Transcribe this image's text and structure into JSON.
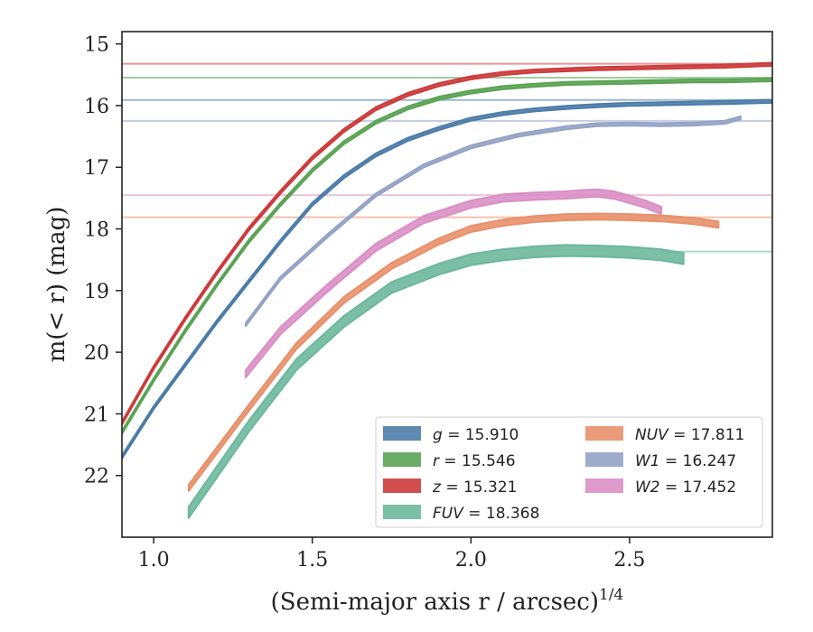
{
  "chart_data": {
    "type": "line",
    "xlabel": "(Semi-major axis r / arcsec)",
    "xlabel_sup": "1/4",
    "ylabel": "m(< r) (mag)",
    "xlim": [
      0.9,
      2.95
    ],
    "ylim": [
      23.0,
      14.8
    ],
    "y_inverted": true,
    "xticks": [
      1.0,
      1.5,
      2.0,
      2.5
    ],
    "xtick_labels": [
      "1.0",
      "1.5",
      "2.0",
      "2.5"
    ],
    "yticks": [
      15,
      16,
      17,
      18,
      19,
      20,
      21,
      22
    ],
    "ytick_labels": [
      "15",
      "16",
      "17",
      "18",
      "19",
      "20",
      "21",
      "22"
    ],
    "grid": false,
    "legend_position": "lower-right",
    "series": [
      {
        "name": "g",
        "legend": "g = 15.910",
        "color": "#4c7ca8",
        "band_width": 0.05,
        "x": [
          0.9,
          1.0,
          1.1,
          1.2,
          1.3,
          1.4,
          1.5,
          1.6,
          1.7,
          1.8,
          1.9,
          2.0,
          2.1,
          2.2,
          2.3,
          2.4,
          2.5,
          2.6,
          2.7,
          2.8,
          2.95
        ],
        "y": [
          21.7,
          20.9,
          20.2,
          19.5,
          18.85,
          18.2,
          17.6,
          17.15,
          16.8,
          16.55,
          16.37,
          16.22,
          16.13,
          16.07,
          16.03,
          16.0,
          15.98,
          15.97,
          15.96,
          15.95,
          15.93
        ],
        "model_x": [
          0.9,
          2.95
        ],
        "model_y": [
          15.91,
          15.91
        ]
      },
      {
        "name": "r",
        "legend": "r = 15.546",
        "color": "#5aa354",
        "band_width": 0.05,
        "x": [
          0.9,
          1.0,
          1.1,
          1.2,
          1.3,
          1.4,
          1.5,
          1.6,
          1.7,
          1.8,
          1.9,
          2.0,
          2.1,
          2.2,
          2.3,
          2.4,
          2.5,
          2.6,
          2.7,
          2.8,
          2.95
        ],
        "y": [
          21.3,
          20.45,
          19.65,
          18.9,
          18.2,
          17.6,
          17.05,
          16.6,
          16.27,
          16.04,
          15.88,
          15.78,
          15.71,
          15.67,
          15.64,
          15.63,
          15.62,
          15.61,
          15.6,
          15.6,
          15.58
        ],
        "model_x": [
          0.9,
          2.95
        ],
        "model_y": [
          15.546,
          15.546
        ]
      },
      {
        "name": "z",
        "legend": "z = 15.321",
        "color": "#cc3b3b",
        "band_width": 0.05,
        "x": [
          0.9,
          1.0,
          1.1,
          1.2,
          1.3,
          1.4,
          1.5,
          1.6,
          1.7,
          1.8,
          1.9,
          2.0,
          2.1,
          2.2,
          2.3,
          2.4,
          2.5,
          2.6,
          2.7,
          2.8,
          2.95
        ],
        "y": [
          21.15,
          20.25,
          19.45,
          18.7,
          18.0,
          17.4,
          16.85,
          16.4,
          16.05,
          15.82,
          15.66,
          15.55,
          15.48,
          15.44,
          15.42,
          15.4,
          15.39,
          15.38,
          15.37,
          15.36,
          15.33
        ],
        "model_x": [
          0.9,
          2.95
        ],
        "model_y": [
          15.321,
          15.321
        ]
      },
      {
        "name": "FUV",
        "legend": "FUV = 18.368",
        "color": "#6cb89c",
        "band_width": 0.18,
        "x": [
          1.11,
          1.3,
          1.45,
          1.6,
          1.75,
          1.9,
          2.0,
          2.1,
          2.2,
          2.3,
          2.4,
          2.5,
          2.6,
          2.67
        ],
        "y": [
          22.6,
          21.2,
          20.2,
          19.5,
          18.95,
          18.65,
          18.5,
          18.42,
          18.37,
          18.35,
          18.36,
          18.38,
          18.42,
          18.48
        ],
        "model_x": [
          2.6,
          2.95
        ],
        "model_y": [
          18.368,
          18.368
        ]
      },
      {
        "name": "NUV",
        "legend": "NUV = 17.811",
        "color": "#e8906a",
        "band_width": 0.1,
        "x": [
          1.11,
          1.3,
          1.45,
          1.6,
          1.75,
          1.9,
          2.0,
          2.1,
          2.2,
          2.3,
          2.4,
          2.5,
          2.6,
          2.7,
          2.78
        ],
        "y": [
          22.2,
          20.9,
          19.9,
          19.15,
          18.6,
          18.2,
          18.0,
          17.9,
          17.84,
          17.81,
          17.8,
          17.81,
          17.83,
          17.87,
          17.93
        ],
        "model_x": [
          0.9,
          2.95
        ],
        "model_y": [
          17.811,
          17.811
        ]
      },
      {
        "name": "W1",
        "legend": "W1 = 16.247",
        "color": "#93a3c6",
        "band_width": 0.05,
        "x": [
          1.29,
          1.4,
          1.55,
          1.7,
          1.85,
          2.0,
          2.15,
          2.3,
          2.4,
          2.5,
          2.6,
          2.7,
          2.8,
          2.85
        ],
        "y": [
          19.55,
          18.8,
          18.1,
          17.45,
          16.98,
          16.67,
          16.48,
          16.36,
          16.31,
          16.3,
          16.31,
          16.3,
          16.27,
          16.2
        ],
        "model_x": [
          0.9,
          2.95
        ],
        "model_y": [
          16.247,
          16.247
        ]
      },
      {
        "name": "W2",
        "legend": "W2 = 17.452",
        "color": "#da8fc4",
        "band_width": 0.12,
        "x": [
          1.29,
          1.4,
          1.55,
          1.7,
          1.85,
          2.0,
          2.1,
          2.2,
          2.3,
          2.35,
          2.4,
          2.45,
          2.5,
          2.55,
          2.6
        ],
        "y": [
          20.35,
          19.65,
          18.95,
          18.3,
          17.85,
          17.6,
          17.5,
          17.47,
          17.45,
          17.43,
          17.42,
          17.45,
          17.52,
          17.6,
          17.7
        ],
        "model_x": [
          0.9,
          2.95
        ],
        "model_y": [
          17.452,
          17.452
        ]
      }
    ]
  }
}
